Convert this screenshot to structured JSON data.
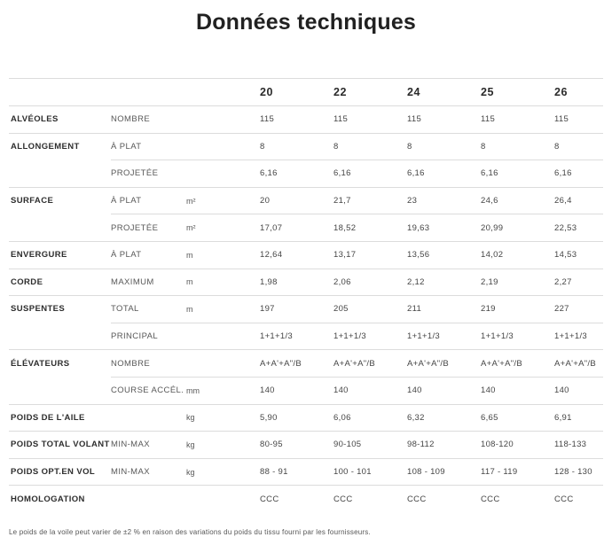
{
  "page_title": "Données techniques",
  "table": {
    "header_sizes": [
      "20",
      "22",
      "24",
      "25",
      "26"
    ],
    "rows": [
      {
        "category": "ALVÉOLES",
        "sub_label": "NOMBRE",
        "unit": "",
        "divider": "full",
        "values": [
          "115",
          "115",
          "115",
          "115",
          "115"
        ]
      },
      {
        "category": "ALLONGEMENT",
        "sub_label": "À PLAT",
        "unit": "",
        "divider": "full",
        "values": [
          "8",
          "8",
          "8",
          "8",
          "8"
        ]
      },
      {
        "category": "",
        "sub_label": "PROJETÉE",
        "unit": "",
        "divider": "partial",
        "values": [
          "6,16",
          "6,16",
          "6,16",
          "6,16",
          "6,16"
        ]
      },
      {
        "category": "SURFACE",
        "sub_label": "À PLAT",
        "unit": "m²",
        "divider": "full",
        "values": [
          "20",
          "21,7",
          "23",
          "24,6",
          "26,4"
        ]
      },
      {
        "category": "",
        "sub_label": "PROJETÉE",
        "unit": "m²",
        "divider": "partial",
        "values": [
          "17,07",
          "18,52",
          "19,63",
          "20,99",
          "22,53"
        ]
      },
      {
        "category": "ENVERGURE",
        "sub_label": "À PLAT",
        "unit": "m",
        "divider": "full",
        "values": [
          "12,64",
          "13,17",
          "13,56",
          "14,02",
          "14,53"
        ]
      },
      {
        "category": "CORDE",
        "sub_label": "MAXIMUM",
        "unit": "m",
        "divider": "full",
        "values": [
          "1,98",
          "2,06",
          "2,12",
          "2,19",
          "2,27"
        ]
      },
      {
        "category": "SUSPENTES",
        "sub_label": "TOTAL",
        "unit": "m",
        "divider": "full",
        "values": [
          "197",
          "205",
          "211",
          "219",
          "227"
        ]
      },
      {
        "category": "",
        "sub_label": "PRINCIPAL",
        "unit": "",
        "divider": "partial",
        "values": [
          "1+1+1/3",
          "1+1+1/3",
          "1+1+1/3",
          "1+1+1/3",
          "1+1+1/3"
        ]
      },
      {
        "category": "ÉLÉVATEURS",
        "sub_label": "NOMBRE",
        "unit": "",
        "divider": "full",
        "values": [
          "A+A'+A\"/B",
          "A+A'+A\"/B",
          "A+A'+A\"/B",
          "A+A'+A\"/B",
          "A+A'+A\"/B"
        ]
      },
      {
        "category": "",
        "sub_label": "COURSE ACCÉL.",
        "unit": "mm",
        "divider": "partial",
        "values": [
          "140",
          "140",
          "140",
          "140",
          "140"
        ]
      },
      {
        "category": "POIDS DE L'AILE",
        "sub_label": "",
        "unit": "kg",
        "divider": "full",
        "values": [
          "5,90",
          "6,06",
          "6,32",
          "6,65",
          "6,91"
        ]
      },
      {
        "category": "POIDS TOTAL VOLANT",
        "sub_label": "MIN-MAX",
        "unit": "kg",
        "divider": "full",
        "values": [
          "80-95",
          "90-105",
          "98-112",
          "108-120",
          "118-133"
        ]
      },
      {
        "category": "POIDS OPT.EN VOL",
        "sub_label": "MIN-MAX",
        "unit": "kg",
        "divider": "full",
        "values": [
          "88 - 91",
          "100 - 101",
          "108 - 109",
          "117 - 119",
          "128 - 130"
        ]
      },
      {
        "category": "HOMOLOGATION",
        "sub_label": "",
        "unit": "",
        "divider": "full",
        "values": [
          "CCC",
          "CCC",
          "CCC",
          "CCC",
          "CCC"
        ]
      }
    ]
  },
  "footnote": "Le poids de la voile peut varier de ±2 % en raison des variations du poids du tissu fourni par les fournisseurs."
}
